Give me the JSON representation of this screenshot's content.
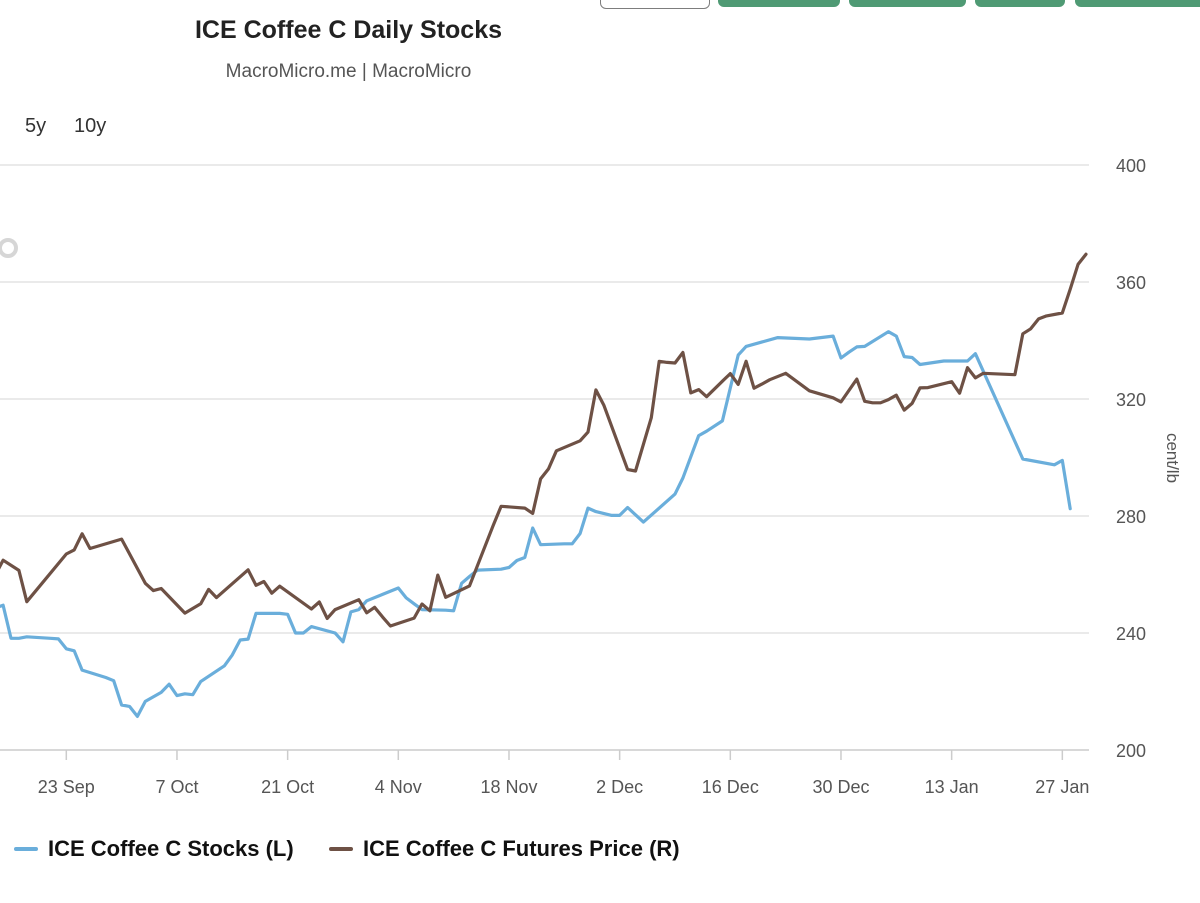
{
  "colors": {
    "stocks": "#6aaedb",
    "price": "#6e5145",
    "grid": "#e3e3e3",
    "axis_text": "#555555",
    "button_green": "#4f9a74"
  },
  "controls": {
    "range_buttons": [
      "5y",
      "10y"
    ]
  },
  "chart_data": {
    "type": "line",
    "title": "ICE Coffee C Daily Stocks",
    "subtitle": "MacroMicro.me | MacroMicro",
    "x_axis": {
      "type": "date",
      "min": "2024-09-13",
      "max": "2025-01-28",
      "tick_labels": [
        "23 Sep",
        "7 Oct",
        "21 Oct",
        "4 Nov",
        "18 Nov",
        "2 Dec",
        "16 Dec",
        "30 Dec",
        "13 Jan",
        "27 Jan"
      ],
      "tick_dates": [
        "2024-09-23",
        "2024-10-07",
        "2024-10-21",
        "2024-11-04",
        "2024-11-18",
        "2024-12-02",
        "2024-12-16",
        "2024-12-30",
        "2025-01-13",
        "2025-01-27"
      ]
    },
    "y_right": {
      "label": "cent/lb",
      "min": 200,
      "max": 400,
      "ticks": [
        200,
        240,
        280,
        320,
        360,
        400
      ]
    },
    "grid": true,
    "legend_position": "bottom-left",
    "series": [
      {
        "name": "ICE Coffee C Stocks (L)",
        "axis": "left",
        "color": "#6aaedb",
        "points": [
          [
            "2024-09-13",
            249.2
          ],
          [
            "2024-09-14",
            248.5
          ],
          [
            "2024-09-15",
            249.5
          ],
          [
            "2024-09-16",
            238.2
          ],
          [
            "2024-09-17",
            238.2
          ],
          [
            "2024-09-18",
            238.7
          ],
          [
            "2024-09-21",
            238.2
          ],
          [
            "2024-09-22",
            238.0
          ],
          [
            "2024-09-23",
            234.6
          ],
          [
            "2024-09-24",
            233.9
          ],
          [
            "2024-09-25",
            227.3
          ],
          [
            "2024-09-28",
            224.8
          ],
          [
            "2024-09-29",
            223.7
          ],
          [
            "2024-09-30",
            215.4
          ],
          [
            "2024-10-01",
            214.9
          ],
          [
            "2024-10-02",
            211.5
          ],
          [
            "2024-10-03",
            216.6
          ],
          [
            "2024-10-05",
            219.7
          ],
          [
            "2024-10-06",
            222.5
          ],
          [
            "2024-10-07",
            218.6
          ],
          [
            "2024-10-08",
            219.2
          ],
          [
            "2024-10-09",
            218.9
          ],
          [
            "2024-10-10",
            223.4
          ],
          [
            "2024-10-13",
            228.8
          ],
          [
            "2024-10-14",
            232.5
          ],
          [
            "2024-10-15",
            237.6
          ],
          [
            "2024-10-16",
            237.9
          ],
          [
            "2024-10-17",
            246.7
          ],
          [
            "2024-10-20",
            246.7
          ],
          [
            "2024-10-21",
            246.4
          ],
          [
            "2024-10-22",
            240.0
          ],
          [
            "2024-10-23",
            240.0
          ],
          [
            "2024-10-24",
            242.2
          ],
          [
            "2024-10-27",
            240.0
          ],
          [
            "2024-10-28",
            237.0
          ],
          [
            "2024-10-29",
            247.2
          ],
          [
            "2024-10-30",
            248.0
          ],
          [
            "2024-10-31",
            251.0
          ],
          [
            "2024-11-04",
            255.4
          ],
          [
            "2024-11-05",
            252.0
          ],
          [
            "2024-11-06",
            250.0
          ],
          [
            "2024-11-07",
            248.0
          ],
          [
            "2024-11-10",
            247.8
          ],
          [
            "2024-11-11",
            247.6
          ],
          [
            "2024-11-12",
            257.0
          ],
          [
            "2024-11-13",
            259.3
          ],
          [
            "2024-11-14",
            261.5
          ],
          [
            "2024-11-17",
            261.8
          ],
          [
            "2024-11-18",
            262.4
          ],
          [
            "2024-11-19",
            264.8
          ],
          [
            "2024-11-20",
            265.8
          ],
          [
            "2024-11-21",
            275.9
          ],
          [
            "2024-11-22",
            270.2
          ],
          [
            "2024-11-25",
            270.5
          ],
          [
            "2024-11-26",
            270.5
          ],
          [
            "2024-11-27",
            274.0
          ],
          [
            "2024-11-28",
            282.7
          ],
          [
            "2024-11-29",
            281.5
          ],
          [
            "2024-12-01",
            280.2
          ],
          [
            "2024-12-02",
            280.2
          ],
          [
            "2024-12-03",
            282.9
          ],
          [
            "2024-12-04",
            280.4
          ],
          [
            "2024-12-05",
            277.9
          ],
          [
            "2024-12-09",
            287.5
          ],
          [
            "2024-12-10",
            293.0
          ],
          [
            "2024-12-12",
            307.5
          ],
          [
            "2024-12-13",
            309.0
          ],
          [
            "2024-12-15",
            312.5
          ],
          [
            "2024-12-17",
            335.0
          ],
          [
            "2024-12-18",
            338.0
          ],
          [
            "2024-12-22",
            341.0
          ],
          [
            "2024-12-26",
            340.5
          ],
          [
            "2024-12-29",
            341.5
          ],
          [
            "2024-12-30",
            334.0
          ],
          [
            "2024-12-31",
            336.0
          ],
          [
            "2025-01-01",
            337.8
          ],
          [
            "2025-01-02",
            338.0
          ],
          [
            "2025-01-05",
            343.0
          ],
          [
            "2025-01-06",
            341.5
          ],
          [
            "2025-01-07",
            334.5
          ],
          [
            "2025-01-08",
            334.2
          ],
          [
            "2025-01-09",
            331.8
          ],
          [
            "2025-01-12",
            333.0
          ],
          [
            "2025-01-13",
            333.0
          ],
          [
            "2025-01-14",
            333.0
          ],
          [
            "2025-01-15",
            333.0
          ],
          [
            "2025-01-16",
            335.5
          ],
          [
            "2025-01-22",
            299.5
          ],
          [
            "2025-01-26",
            297.5
          ],
          [
            "2025-01-27",
            299.0
          ],
          [
            "2025-01-28",
            282.5
          ]
        ]
      },
      {
        "name": "ICE Coffee C Futures Price (R)",
        "axis": "right",
        "color": "#6e5145",
        "points": [
          [
            "2024-09-13",
            260.5
          ],
          [
            "2024-09-14",
            259.8
          ],
          [
            "2024-09-15",
            264.9
          ],
          [
            "2024-09-17",
            261.4
          ],
          [
            "2024-09-18",
            250.7
          ],
          [
            "2024-09-23",
            267.0
          ],
          [
            "2024-09-24",
            268.4
          ],
          [
            "2024-09-25",
            273.9
          ],
          [
            "2024-09-26",
            268.9
          ],
          [
            "2024-09-30",
            272.1
          ],
          [
            "2024-10-03",
            257.0
          ],
          [
            "2024-10-04",
            254.5
          ],
          [
            "2024-10-05",
            255.2
          ],
          [
            "2024-10-08",
            246.8
          ],
          [
            "2024-10-10",
            250.0
          ],
          [
            "2024-10-11",
            254.9
          ],
          [
            "2024-10-12",
            252.1
          ],
          [
            "2024-10-16",
            261.6
          ],
          [
            "2024-10-17",
            256.3
          ],
          [
            "2024-10-18",
            257.6
          ],
          [
            "2024-10-19",
            253.6
          ],
          [
            "2024-10-20",
            256.0
          ],
          [
            "2024-10-24",
            248.2
          ],
          [
            "2024-10-25",
            250.6
          ],
          [
            "2024-10-26",
            245.0
          ],
          [
            "2024-10-27",
            248.0
          ],
          [
            "2024-10-30",
            251.4
          ],
          [
            "2024-10-31",
            246.9
          ],
          [
            "2024-11-01",
            248.8
          ],
          [
            "2024-11-02",
            245.5
          ],
          [
            "2024-11-03",
            242.4
          ],
          [
            "2024-11-06",
            245.1
          ],
          [
            "2024-11-07",
            249.9
          ],
          [
            "2024-11-08",
            247.6
          ],
          [
            "2024-11-09",
            259.8
          ],
          [
            "2024-11-10",
            252.2
          ],
          [
            "2024-11-13",
            256.1
          ],
          [
            "2024-11-16",
            276.8
          ],
          [
            "2024-11-17",
            283.3
          ],
          [
            "2024-11-20",
            282.7
          ],
          [
            "2024-11-21",
            280.9
          ],
          [
            "2024-11-22",
            292.7
          ],
          [
            "2024-11-23",
            296.1
          ],
          [
            "2024-11-24",
            302.3
          ],
          [
            "2024-11-27",
            305.7
          ],
          [
            "2024-11-28",
            308.7
          ],
          [
            "2024-11-29",
            323.1
          ],
          [
            "2024-11-30",
            317.9
          ],
          [
            "2024-12-03",
            295.9
          ],
          [
            "2024-12-04",
            295.4
          ],
          [
            "2024-12-06",
            313.6
          ],
          [
            "2024-12-07",
            332.9
          ],
          [
            "2024-12-08",
            332.5
          ],
          [
            "2024-12-09",
            332.3
          ],
          [
            "2024-12-10",
            335.9
          ],
          [
            "2024-12-11",
            322.1
          ],
          [
            "2024-12-12",
            323.2
          ],
          [
            "2024-12-13",
            320.8
          ],
          [
            "2024-12-15",
            326.1
          ],
          [
            "2024-12-16",
            328.7
          ],
          [
            "2024-12-17",
            325.0
          ],
          [
            "2024-12-18",
            332.9
          ],
          [
            "2024-12-19",
            323.7
          ],
          [
            "2024-12-20",
            325.1
          ],
          [
            "2024-12-21",
            326.6
          ],
          [
            "2024-12-23",
            328.8
          ],
          [
            "2024-12-26",
            322.8
          ],
          [
            "2024-12-29",
            320.4
          ],
          [
            "2024-12-30",
            319.0
          ],
          [
            "2025-01-01",
            326.8
          ],
          [
            "2025-01-02",
            319.2
          ],
          [
            "2025-01-03",
            318.7
          ],
          [
            "2025-01-04",
            318.7
          ],
          [
            "2025-01-05",
            319.8
          ],
          [
            "2025-01-06",
            321.3
          ],
          [
            "2025-01-07",
            316.2
          ],
          [
            "2025-01-08",
            318.5
          ],
          [
            "2025-01-09",
            323.8
          ],
          [
            "2025-01-10",
            323.9
          ],
          [
            "2025-01-13",
            325.9
          ],
          [
            "2025-01-14",
            322.0
          ],
          [
            "2025-01-15",
            330.7
          ],
          [
            "2025-01-16",
            327.2
          ],
          [
            "2025-01-17",
            328.8
          ],
          [
            "2025-01-21",
            328.3
          ],
          [
            "2025-01-22",
            342.3
          ],
          [
            "2025-01-23",
            344.0
          ],
          [
            "2025-01-24",
            347.4
          ],
          [
            "2025-01-25",
            348.4
          ],
          [
            "2025-01-27",
            349.4
          ],
          [
            "2025-01-28",
            357.5
          ],
          [
            "2025-01-29",
            366.1
          ],
          [
            "2025-01-30",
            369.5
          ]
        ]
      }
    ]
  }
}
